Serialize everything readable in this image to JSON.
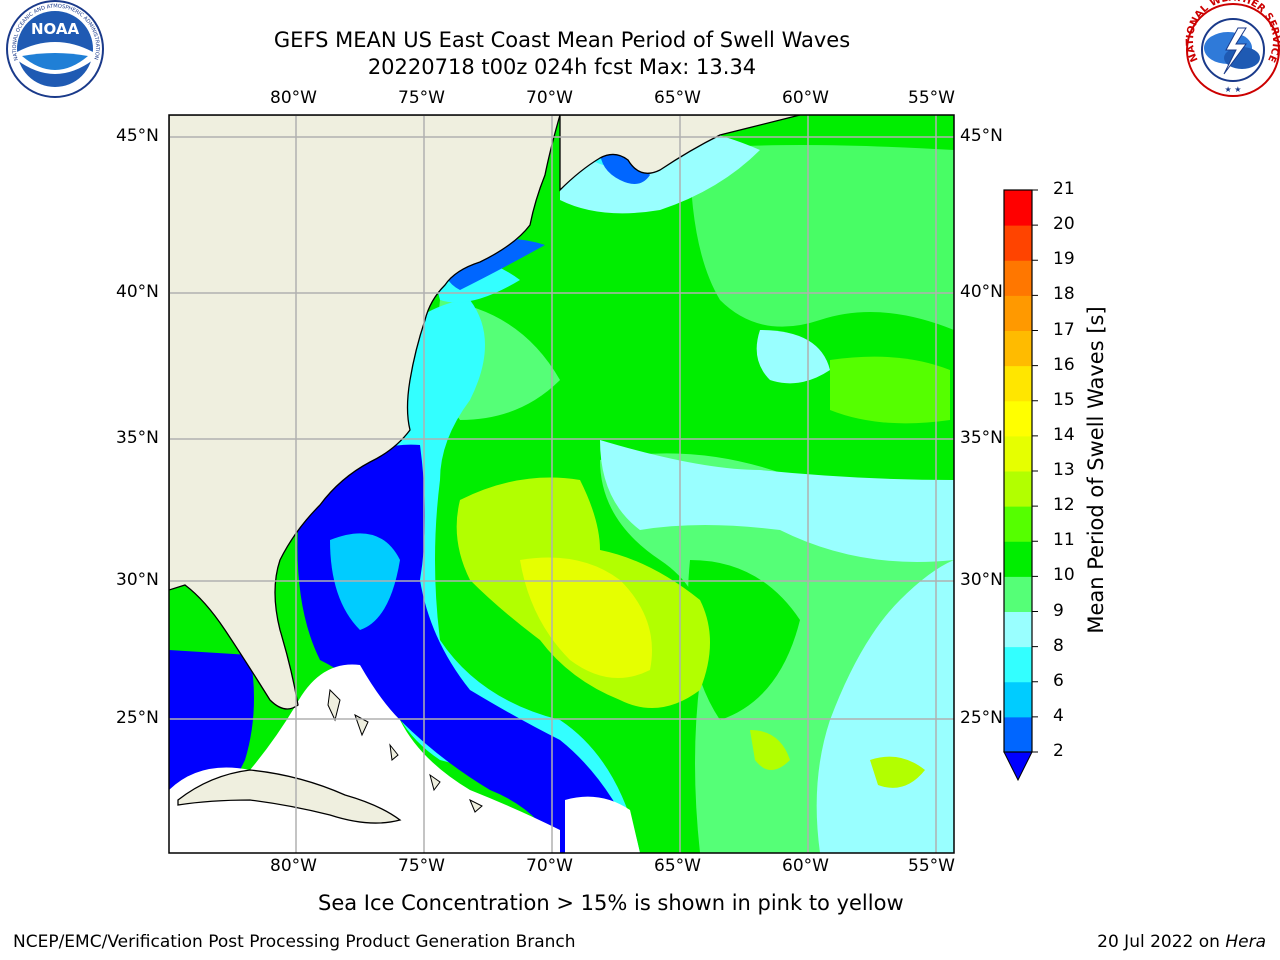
{
  "title": {
    "line1": "GEFS MEAN US East Coast Mean Period of Swell Waves",
    "line2": "20220718 t00z 024h fcst   Max: 13.34"
  },
  "map": {
    "lon_labels": [
      "80°W",
      "75°W",
      "70°W",
      "65°W",
      "60°W",
      "55°W"
    ],
    "lat_labels": [
      "45°N",
      "40°N",
      "35°N",
      "30°N",
      "25°N"
    ]
  },
  "colorbar": {
    "label": "Mean Period of Swell Waves [s]",
    "ticks": [
      "2",
      "4",
      "6",
      "8",
      "9",
      "10",
      "11",
      "12",
      "13",
      "14",
      "15",
      "16",
      "17",
      "18",
      "19",
      "20",
      "21"
    ],
    "colors": [
      "#0066ff",
      "#00ccff",
      "#33ffff",
      "#99ffff",
      "#55ff77",
      "#00ee00",
      "#55ff00",
      "#b2ff00",
      "#e6ff00",
      "#ffff00",
      "#ffe600",
      "#ffbb00",
      "#ff9900",
      "#ff7700",
      "#ff4400",
      "#ff2200",
      "#ff0000"
    ],
    "under_color": "#0000ff"
  },
  "footnote": "Sea Ice Concentration > 15% is shown in pink to yellow",
  "credit": "NCEP/EMC/Verification Post Processing Product Generation Branch",
  "date": {
    "text": "20 Jul 2022 on ",
    "machine": "Hera"
  },
  "logos": {
    "noaa": "NOAA",
    "nws": "NATIONAL WEATHER SERVICE"
  }
}
